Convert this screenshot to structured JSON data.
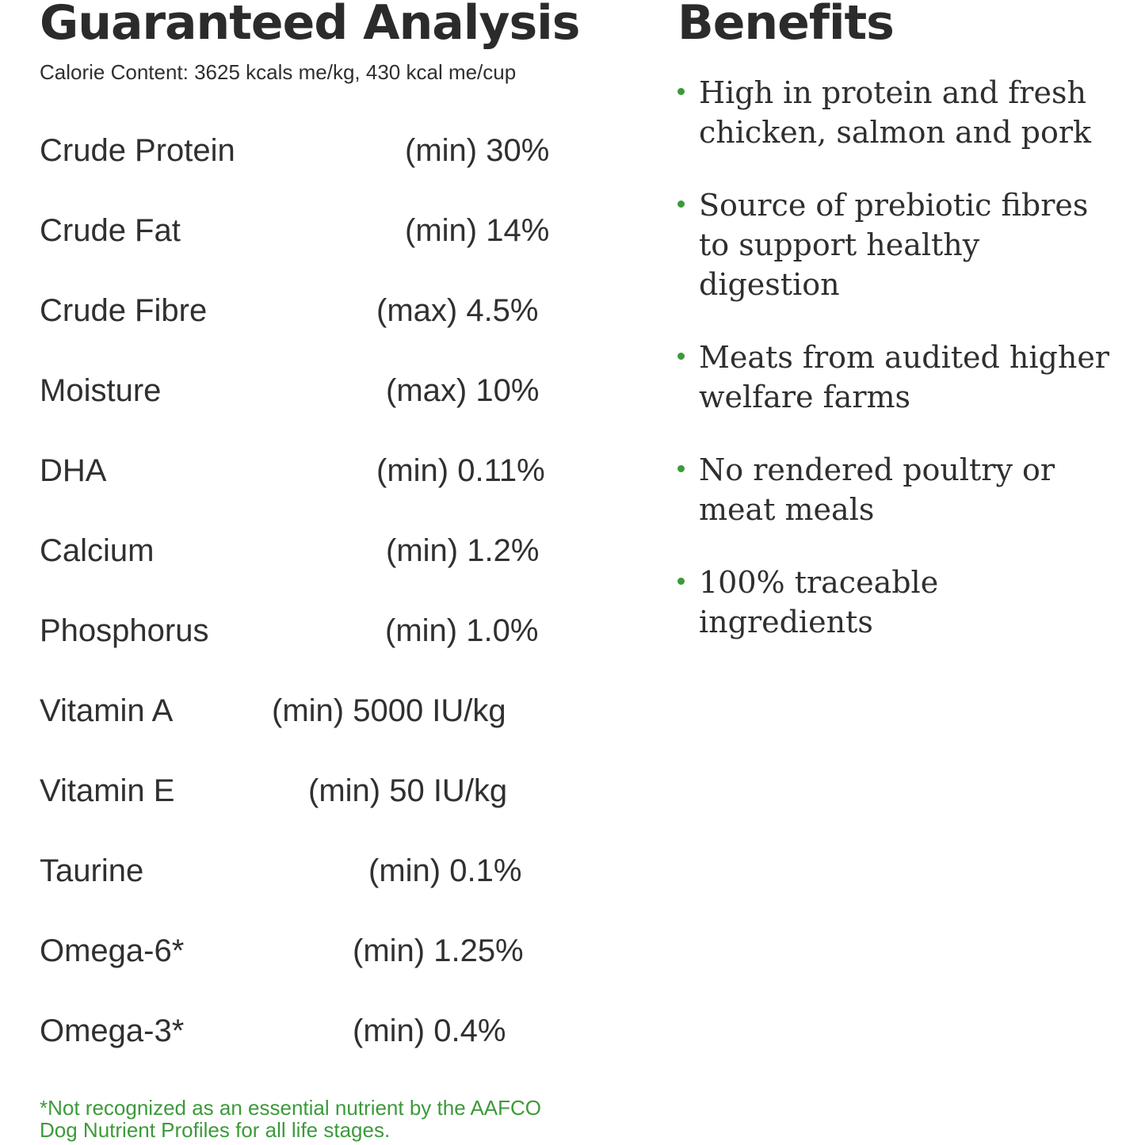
{
  "guaranteed_analysis": {
    "title": "Guaranteed Analysis",
    "calorie_content": "Calorie Content: 3625 kcals me/kg, 430 kcal me/cup",
    "nutrients": [
      {
        "name": "Crude Protein",
        "value": "(min) 30%"
      },
      {
        "name": "Crude Fat",
        "value": "(min) 14%"
      },
      {
        "name": "Crude Fibre",
        "value": "(max) 4.5%"
      },
      {
        "name": "Moisture",
        "value": "(max) 10%"
      },
      {
        "name": "DHA",
        "value": "(min) 0.11%"
      },
      {
        "name": "Calcium",
        "value": "(min) 1.2%"
      },
      {
        "name": "Phosphorus",
        "value": "(min) 1.0%"
      },
      {
        "name": "Vitamin A",
        "value": "(min) 5000 IU/kg"
      },
      {
        "name": "Vitamin E",
        "value": "(min) 50 IU/kg"
      },
      {
        "name": "Taurine",
        "value": "(min) 0.1%"
      },
      {
        "name": "Omega-6*",
        "value": "(min) 1.25%"
      },
      {
        "name": "Omega-3*",
        "value": "(min) 0.4%"
      }
    ],
    "footnote": "*Not recognized as an essential nutrient by the AAFCO Dog Nutrient Profiles for all life stages."
  },
  "benefits": {
    "title": "Benefits",
    "items": [
      "High in protein and fresh chicken, salmon and pork",
      "Source of prebiotic fibres to support healthy digestion",
      "Meats from audited higher welfare farms",
      "No rendered poultry or meat meals",
      "100% traceable ingredients"
    ]
  },
  "colors": {
    "heading": "#2b2b2b",
    "text": "#2f2f2f",
    "accent_green": "#3c9a3a"
  }
}
